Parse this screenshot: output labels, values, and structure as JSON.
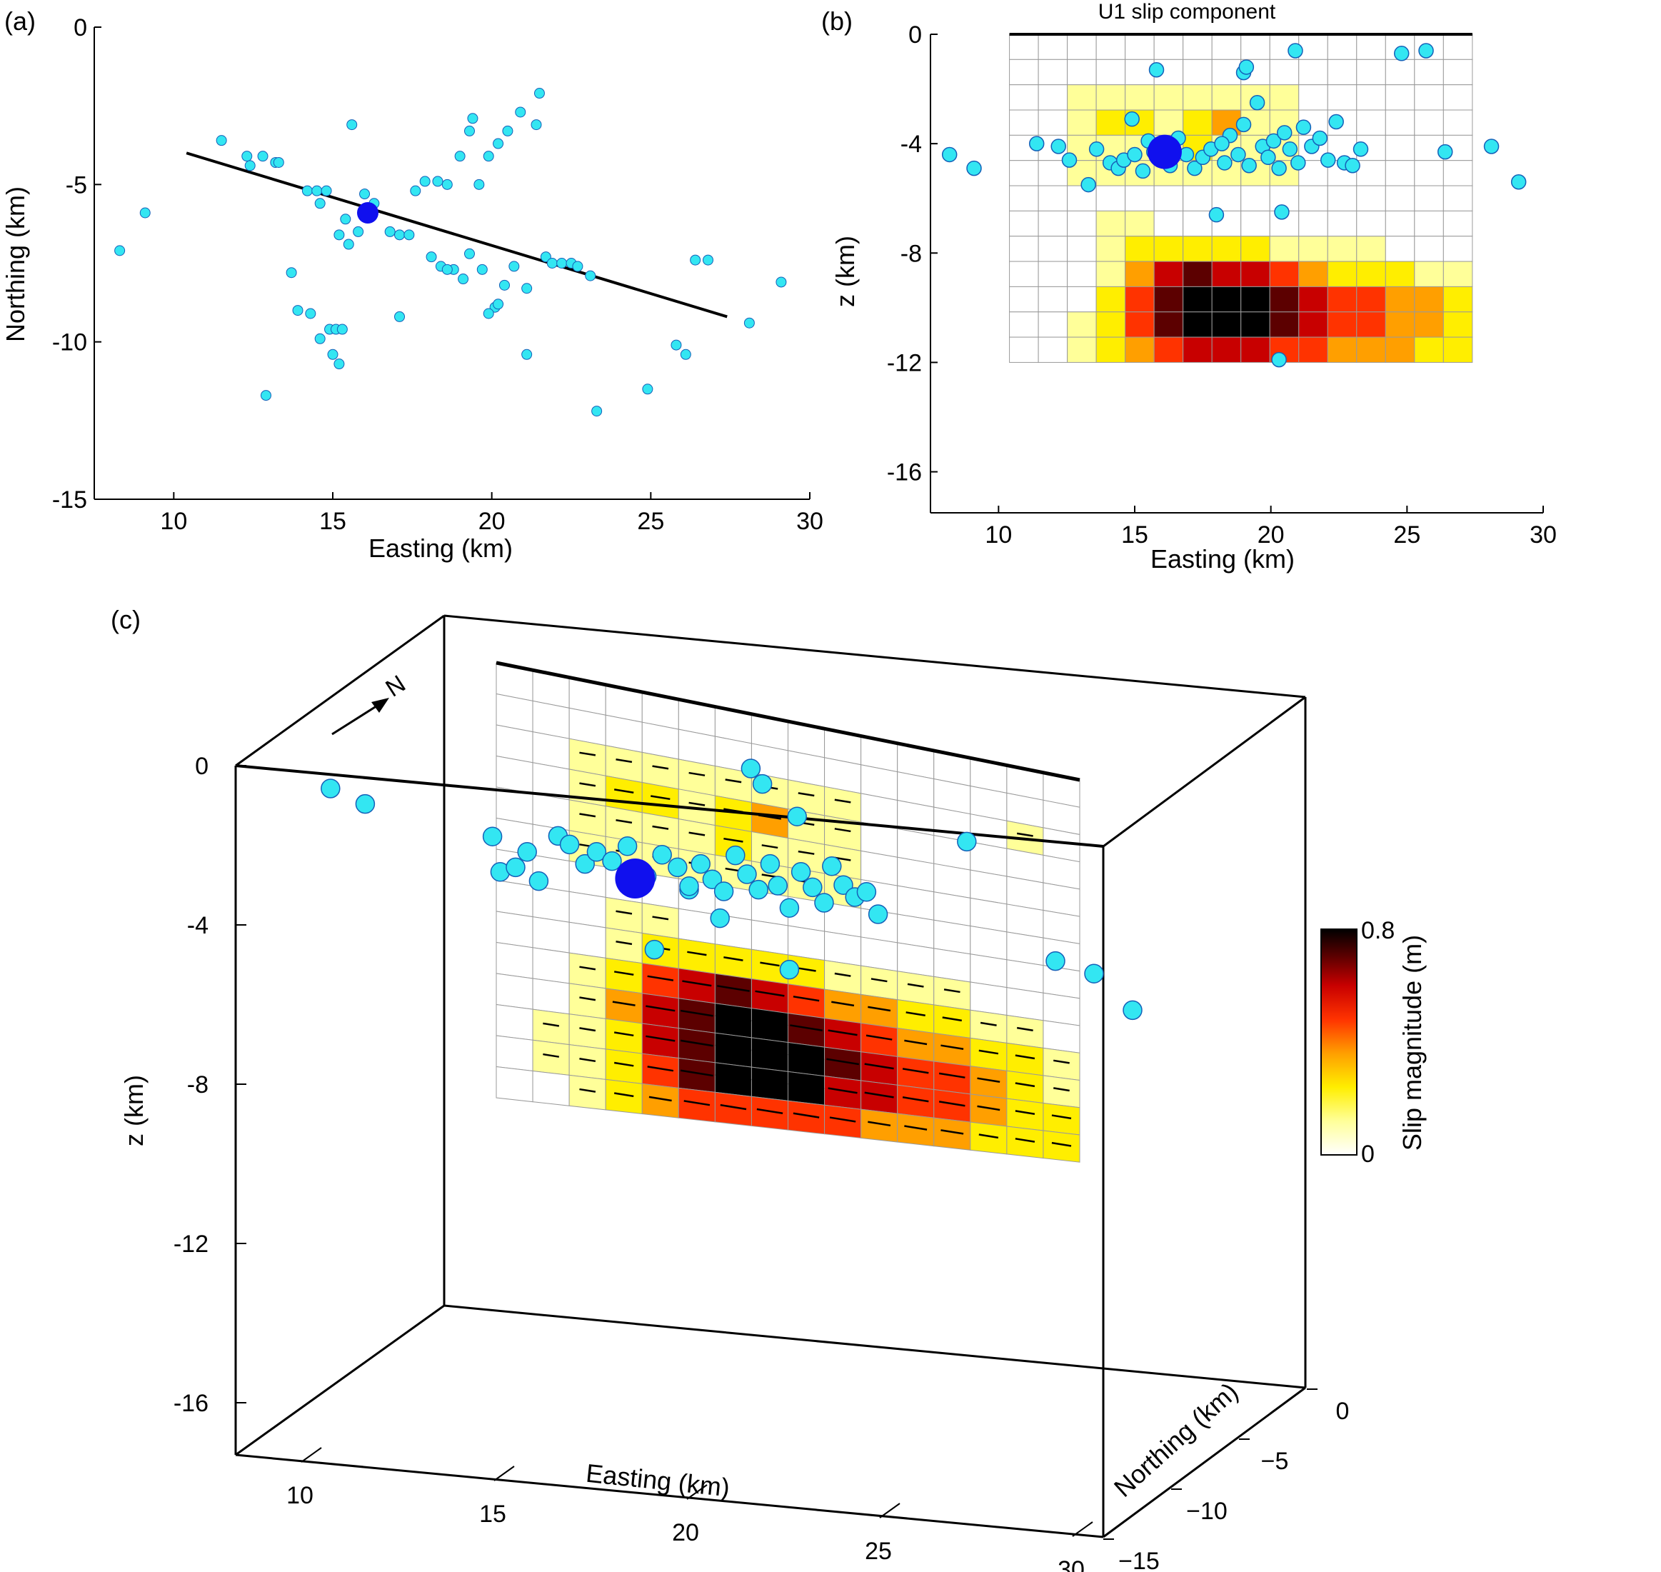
{
  "panel_labels": {
    "a": "(a)",
    "b": "(b)",
    "c": "(c)"
  },
  "colors": {
    "event": "#33e6f2",
    "event_edge": "#1560b8",
    "mainshock": "#1010ee",
    "fault_trace": "#000000",
    "grid_line": "#9a9a9a",
    "colormap": [
      "#ffffff",
      "#ffff99",
      "#ffee00",
      "#ff9f00",
      "#ff3300",
      "#c80000",
      "#5c0000",
      "#000000"
    ]
  },
  "chart_data": [
    {
      "panel": "a",
      "type": "scatter",
      "title": "",
      "xlabel": "Easting (km)",
      "ylabel": "Northing (km)",
      "xlim": [
        7.5,
        30
      ],
      "ylim": [
        -15,
        0
      ],
      "xticks": [
        "10",
        "15",
        "20",
        "25",
        "30"
      ],
      "yticks": [
        "0",
        "-5",
        "-10",
        "-15"
      ],
      "fault_trace": {
        "x": [
          10.4,
          27.4
        ],
        "y": [
          -4.0,
          -9.2
        ]
      },
      "mainshock": {
        "x": 16.1,
        "y": -5.9
      },
      "aftershocks": {
        "x": [
          8.3,
          9.1,
          11.5,
          12.3,
          12.4,
          12.8,
          12.9,
          13.2,
          13.3,
          13.7,
          13.9,
          14.2,
          14.3,
          14.5,
          14.6,
          14.6,
          14.8,
          14.9,
          15.0,
          15.2,
          15.2,
          15.4,
          15.5,
          15.6,
          15.8,
          16.0,
          16.3,
          16.8,
          17.1,
          17.4,
          17.6,
          17.9,
          18.1,
          18.3,
          18.4,
          18.6,
          18.8,
          19.0,
          19.1,
          19.3,
          19.4,
          19.6,
          19.7,
          19.9,
          20.1,
          20.2,
          20.4,
          20.5,
          20.7,
          20.9,
          21.1,
          21.4,
          21.5,
          21.7,
          21.9,
          22.2,
          22.5,
          22.7,
          23.1,
          23.3,
          24.9,
          25.8,
          26.1,
          26.4,
          26.8,
          28.1,
          29.1,
          17.1,
          18.6,
          19.9,
          20.2,
          19.3,
          21.1,
          15.1,
          15.3
        ],
        "y": [
          -7.1,
          -5.9,
          -3.6,
          -4.1,
          -4.4,
          -4.1,
          -11.7,
          -4.3,
          -4.3,
          -7.8,
          -9.0,
          -5.2,
          -9.1,
          -5.2,
          -9.9,
          -5.6,
          -5.2,
          -9.6,
          -10.4,
          -6.6,
          -10.7,
          -6.1,
          -6.9,
          -3.1,
          -6.5,
          -5.3,
          -5.6,
          -6.5,
          -6.6,
          -6.6,
          -5.2,
          -4.9,
          -7.3,
          -4.9,
          -7.6,
          -5.0,
          -7.7,
          -4.1,
          -8.0,
          -7.2,
          -2.9,
          -5.0,
          -7.7,
          -4.1,
          -8.9,
          -3.7,
          -8.2,
          -3.3,
          -7.6,
          -2.7,
          -8.3,
          -3.1,
          -2.1,
          -7.3,
          -7.5,
          -7.5,
          -7.5,
          -7.6,
          -7.9,
          -12.2,
          -11.5,
          -10.1,
          -10.4,
          -7.4,
          -7.4,
          -9.4,
          -8.1,
          -9.2,
          -7.7,
          -9.1,
          -8.8,
          -3.3,
          -10.4,
          -9.6,
          -9.6
        ]
      }
    },
    {
      "panel": "b",
      "type": "heatmap",
      "title": "U1 slip component",
      "xlabel": "Easting (km)",
      "ylabel": "z (km)",
      "xlim": [
        7.5,
        30
      ],
      "ylim": [
        -17.5,
        0
      ],
      "xticks": [
        "10",
        "15",
        "20",
        "25",
        "30"
      ],
      "yticks": [
        "0",
        "-4",
        "-8",
        "-12",
        "-16"
      ],
      "grid": {
        "x0": 10.4,
        "x1": 27.4,
        "z0": 0,
        "z1": -12,
        "nx": 16,
        "nz": 13
      },
      "slip": [
        [
          0,
          0,
          0,
          0,
          0,
          0,
          0,
          0,
          0,
          0,
          0,
          0,
          0,
          0,
          0,
          0
        ],
        [
          0,
          0,
          0,
          0,
          0,
          0,
          0,
          0,
          0,
          0,
          0,
          0,
          0,
          0,
          0,
          0
        ],
        [
          0,
          0,
          1,
          1,
          1,
          1,
          1,
          1,
          1,
          1,
          0,
          0,
          0,
          0,
          0,
          0
        ],
        [
          0,
          0,
          1,
          2,
          2,
          1,
          2,
          3,
          1,
          1,
          0,
          0,
          0,
          0,
          0,
          0
        ],
        [
          0,
          0,
          1,
          1,
          1,
          1,
          2,
          1,
          1,
          1,
          0,
          0,
          0,
          0,
          0,
          0
        ],
        [
          0,
          0,
          1,
          1,
          1,
          1,
          1,
          1,
          1,
          1,
          0,
          0,
          0,
          0,
          0,
          0
        ],
        [
          0,
          0,
          0,
          0,
          0,
          0,
          0,
          0,
          0,
          0,
          0,
          0,
          0,
          0,
          0,
          0
        ],
        [
          0,
          0,
          0,
          1,
          1,
          0,
          0,
          0,
          0,
          0,
          0,
          0,
          0,
          0,
          0,
          0
        ],
        [
          0,
          0,
          0,
          1,
          2,
          2,
          2,
          2,
          2,
          1,
          1,
          1,
          1,
          0,
          0,
          0
        ],
        [
          0,
          0,
          0,
          1,
          3,
          5,
          6,
          5,
          5,
          4,
          3,
          2,
          2,
          2,
          1,
          1
        ],
        [
          0,
          0,
          0,
          2,
          4,
          6,
          7,
          7,
          7,
          6,
          5,
          4,
          4,
          3,
          3,
          2
        ],
        [
          0,
          0,
          1,
          2,
          4,
          6,
          7,
          7,
          7,
          6,
          5,
          4,
          4,
          3,
          3,
          2
        ],
        [
          0,
          0,
          1,
          2,
          3,
          4,
          5,
          5,
          5,
          4,
          4,
          3,
          3,
          3,
          2,
          2
        ]
      ],
      "mainshock": {
        "x": 16.1,
        "z": -4.3
      },
      "aftershocks": {
        "x": [
          8.2,
          9.1,
          11.4,
          12.2,
          12.6,
          13.3,
          13.6,
          14.1,
          14.4,
          14.6,
          14.9,
          15.0,
          15.3,
          15.5,
          15.7,
          16.3,
          16.6,
          16.9,
          17.2,
          17.5,
          17.8,
          18.0,
          18.3,
          18.5,
          18.8,
          19.0,
          19.2,
          19.5,
          19.7,
          19.9,
          20.1,
          20.3,
          20.5,
          20.7,
          21.0,
          21.2,
          21.5,
          21.8,
          22.1,
          22.4,
          22.7,
          23.0,
          23.3,
          24.8,
          25.7,
          26.4,
          28.1,
          29.1,
          18.2,
          20.4,
          19.0,
          19.1,
          15.8,
          20.9,
          20.3
        ],
        "z": [
          -4.4,
          -4.9,
          -4.0,
          -4.1,
          -4.6,
          -5.5,
          -4.2,
          -4.7,
          -4.9,
          -4.6,
          -3.1,
          -4.4,
          -5.0,
          -3.9,
          -4.3,
          -4.8,
          -3.8,
          -4.4,
          -4.9,
          -4.5,
          -4.2,
          -6.6,
          -4.7,
          -3.7,
          -4.4,
          -3.3,
          -4.8,
          -2.5,
          -4.1,
          -4.5,
          -3.9,
          -4.9,
          -3.6,
          -4.2,
          -4.7,
          -3.4,
          -4.1,
          -3.8,
          -4.6,
          -3.2,
          -4.7,
          -4.8,
          -4.2,
          -0.7,
          -0.6,
          -4.3,
          -4.1,
          -5.4,
          -4.0,
          -6.5,
          -1.4,
          -1.2,
          -1.3,
          -0.6,
          -11.9
        ]
      }
    },
    {
      "panel": "c",
      "type": "heatmap",
      "title": "",
      "xlabel": "Easting (km)",
      "ylabel": "z (km)",
      "zlabel": "Northing (km)",
      "xticks": [
        "10",
        "15",
        "20",
        "25",
        "30"
      ],
      "northing_ticks": [
        "0",
        "−5",
        "−10",
        "−15"
      ],
      "zticks": [
        "0",
        "-4",
        "-8",
        "-12",
        "-16"
      ],
      "colorbar": {
        "label": "Slip magnitude (m)",
        "min": "0",
        "max": "0.8",
        "range": [
          0,
          0.8
        ]
      },
      "north_arrow": "N",
      "slip": [
        [
          0,
          0,
          0,
          0,
          0,
          0,
          0,
          0,
          0,
          0,
          0,
          0,
          0,
          0,
          0,
          0
        ],
        [
          0,
          0,
          0,
          0,
          0,
          0,
          0,
          0,
          0,
          0,
          0,
          0,
          0,
          0,
          0,
          0
        ],
        [
          0,
          0,
          1,
          1,
          1,
          1,
          1,
          1,
          1,
          1,
          0,
          0,
          0,
          0,
          1,
          0
        ],
        [
          0,
          0,
          1,
          2,
          2,
          1,
          2,
          3,
          1,
          1,
          0,
          0,
          0,
          0,
          0,
          0
        ],
        [
          0,
          0,
          1,
          1,
          1,
          1,
          2,
          1,
          1,
          1,
          0,
          0,
          0,
          0,
          0,
          0
        ],
        [
          0,
          0,
          1,
          1,
          1,
          1,
          1,
          1,
          1,
          1,
          0,
          0,
          0,
          0,
          0,
          0
        ],
        [
          0,
          0,
          0,
          0,
          0,
          0,
          0,
          0,
          0,
          0,
          0,
          0,
          0,
          0,
          0,
          0
        ],
        [
          0,
          0,
          0,
          1,
          1,
          0,
          0,
          0,
          0,
          0,
          0,
          0,
          0,
          0,
          0,
          0
        ],
        [
          0,
          0,
          0,
          1,
          2,
          2,
          2,
          2,
          2,
          1,
          1,
          1,
          1,
          0,
          0,
          0
        ],
        [
          0,
          0,
          1,
          2,
          4,
          5,
          6,
          5,
          4,
          3,
          3,
          2,
          2,
          1,
          1,
          0
        ],
        [
          0,
          0,
          1,
          3,
          5,
          6,
          7,
          7,
          6,
          5,
          4,
          3,
          3,
          2,
          2,
          1
        ],
        [
          0,
          1,
          1,
          2,
          5,
          6,
          7,
          7,
          7,
          6,
          5,
          4,
          4,
          3,
          2,
          1
        ],
        [
          0,
          1,
          1,
          2,
          4,
          6,
          7,
          7,
          7,
          5,
          5,
          4,
          4,
          3,
          2,
          2
        ],
        [
          0,
          0,
          1,
          2,
          3,
          4,
          4,
          4,
          4,
          4,
          3,
          3,
          3,
          2,
          2,
          2
        ]
      ],
      "mainshock": {
        "x": 16.1,
        "z": -3.1
      },
      "aftershocks": {
        "x": [
          8.2,
          9.1,
          12.4,
          12.6,
          13.0,
          13.3,
          13.6,
          14.1,
          14.4,
          14.8,
          15.1,
          15.5,
          15.9,
          16.4,
          16.8,
          17.2,
          17.5,
          17.8,
          18.1,
          18.4,
          18.7,
          19.0,
          19.3,
          19.6,
          19.8,
          20.1,
          20.4,
          20.7,
          21.0,
          21.2,
          21.5,
          21.8,
          22.1,
          22.4,
          16.6,
          17.5,
          19.1,
          19.4,
          20.3,
          24.7,
          27.0,
          28.0,
          29.0,
          18.3,
          20.1
        ],
        "z": [
          -2.6,
          -2.9,
          -3.3,
          -4.3,
          -4.1,
          -3.6,
          -4.4,
          -3.0,
          -3.2,
          -3.7,
          -3.3,
          -3.5,
          -3.0,
          -3.8,
          -3.1,
          -3.4,
          -4.0,
          -3.2,
          -3.6,
          -3.9,
          -2.8,
          -3.3,
          -3.7,
          -2.9,
          -3.5,
          -4.1,
          -3.0,
          -3.4,
          -3.8,
          -2.7,
          -3.2,
          -3.5,
          -3.3,
          -3.9,
          -5.9,
          -3.9,
          -0.2,
          -0.6,
          -1.4,
          -1.4,
          -4.5,
          -4.7,
          -5.6,
          -4.7,
          -5.9
        ]
      }
    }
  ]
}
